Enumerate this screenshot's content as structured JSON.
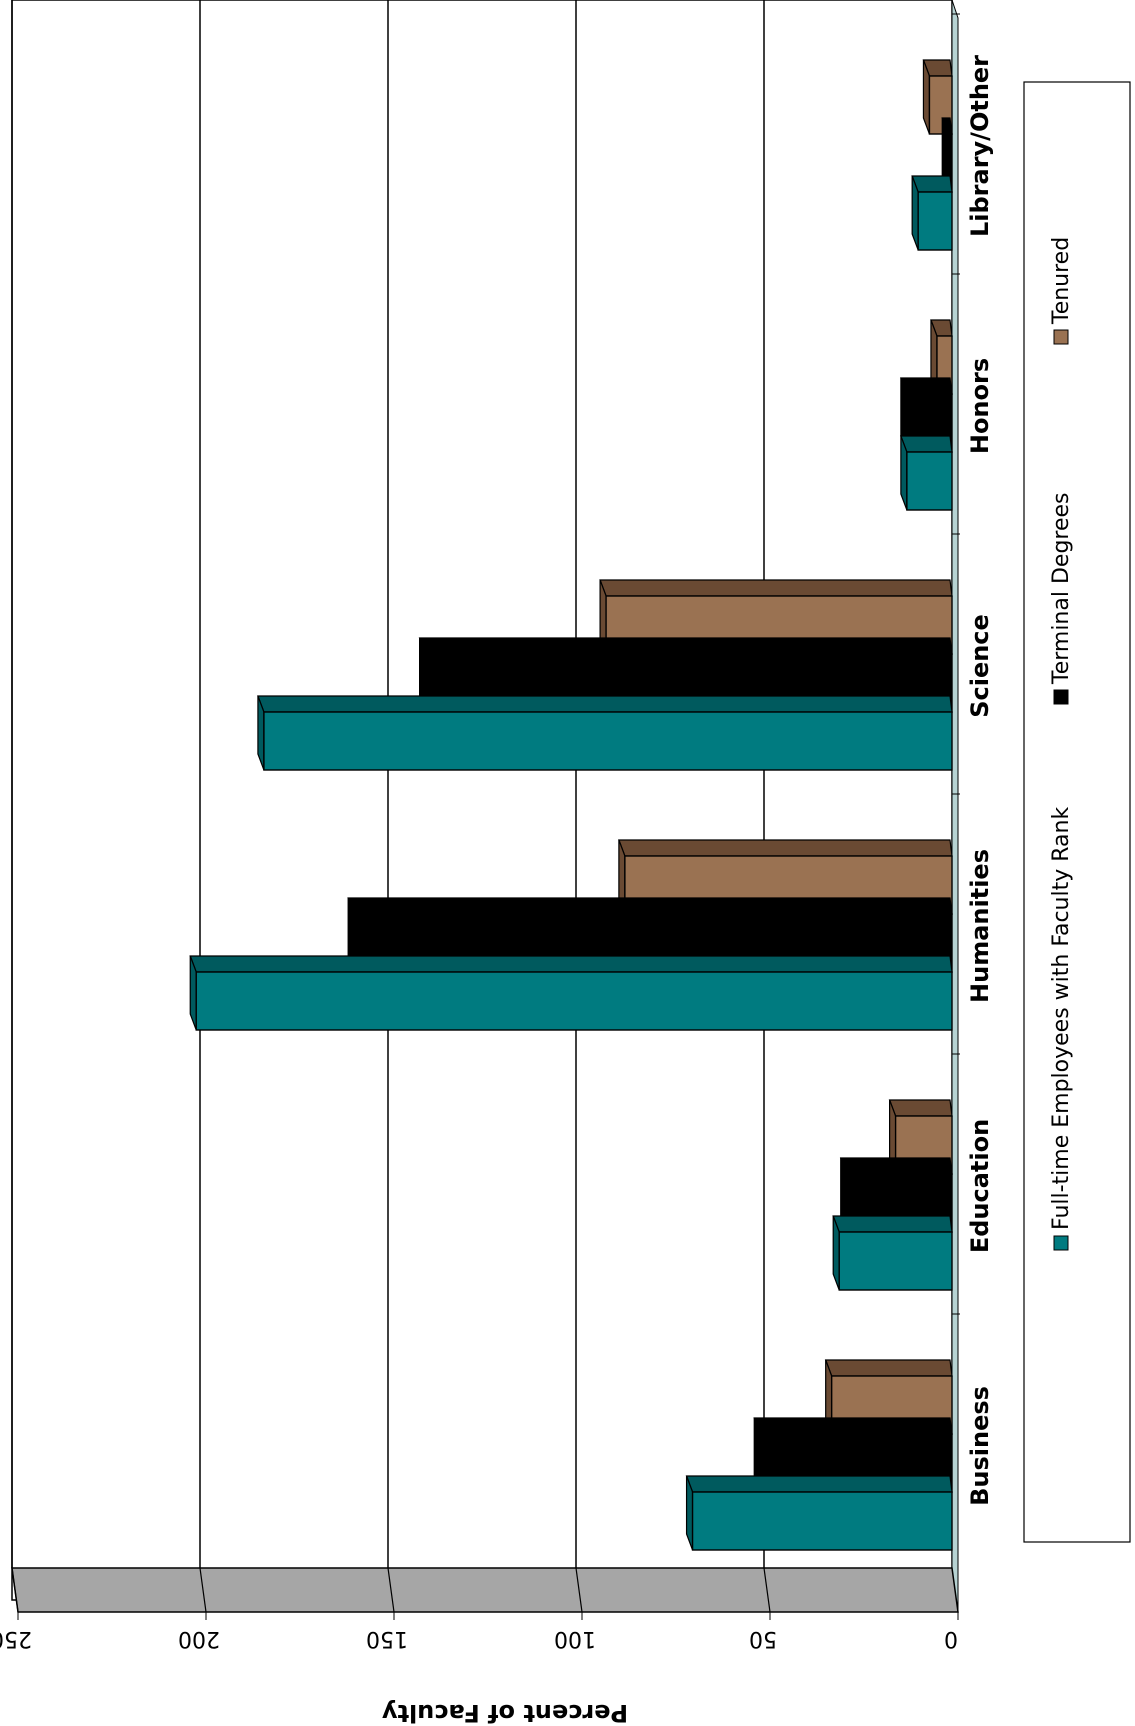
{
  "chart_data": {
    "type": "bar",
    "orientation": "horizontal-3d",
    "title": "",
    "xlabel": "",
    "ylabel": "Percent of Faculty",
    "ylim": [
      0,
      250
    ],
    "yticks": [
      "0",
      "50",
      "100",
      "150",
      "200",
      "250"
    ],
    "grid": true,
    "legend_position": "right",
    "categories": [
      "Business",
      "Education",
      "Humanities",
      "Science",
      "Honors",
      "Library/Other"
    ],
    "series": [
      {
        "name": "Full-time Employees with Faculty Rank",
        "values": [
          69,
          30,
          201,
          183,
          12,
          9
        ],
        "color": "#007b80",
        "shade": "#005a5e"
      },
      {
        "name": "Terminal Degrees",
        "values": [
          51,
          28,
          159,
          140,
          12,
          1
        ],
        "color": "#000000",
        "shade": "#000000"
      },
      {
        "name": "Tenured",
        "values": [
          32,
          15,
          87,
          92,
          4,
          6
        ],
        "color": "#9a7252",
        "shade": "#6a4a33"
      }
    ]
  }
}
